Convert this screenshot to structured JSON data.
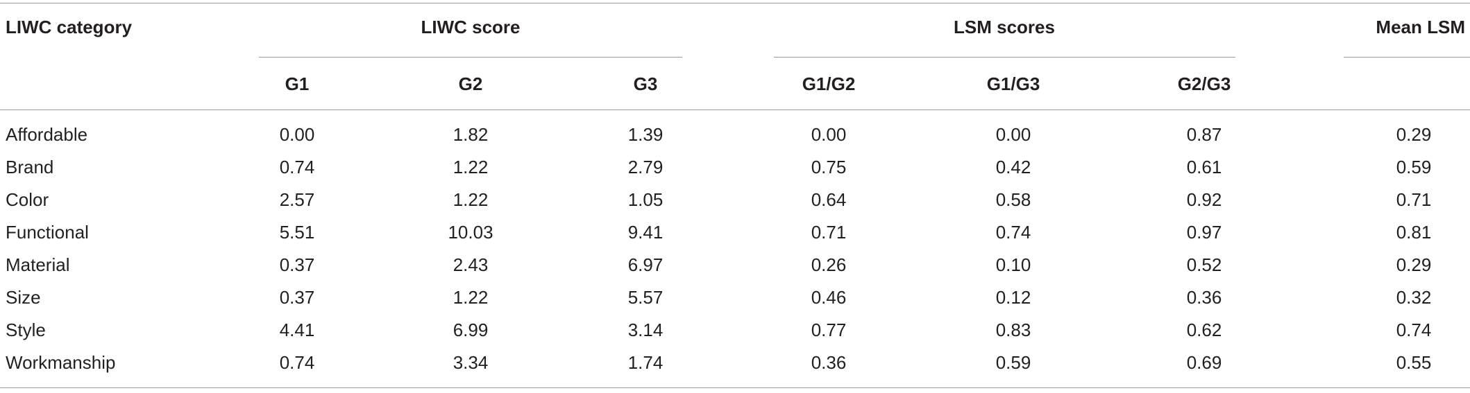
{
  "table": {
    "headers": {
      "category": "LIWC category",
      "liwc_score": "LIWC score",
      "lsm_scores": "LSM scores",
      "mean_lsm": "Mean LSM"
    },
    "subheaders": [
      "G1",
      "G2",
      "G3",
      "G1/G2",
      "G1/G3",
      "G2/G3"
    ],
    "rows": [
      {
        "category": "Affordable",
        "cells": [
          "0.00",
          "1.82",
          "1.39",
          "0.00",
          "0.00",
          "0.87",
          "0.29"
        ]
      },
      {
        "category": "Brand",
        "cells": [
          "0.74",
          "1.22",
          "2.79",
          "0.75",
          "0.42",
          "0.61",
          "0.59"
        ]
      },
      {
        "category": "Color",
        "cells": [
          "2.57",
          "1.22",
          "1.05",
          "0.64",
          "0.58",
          "0.92",
          "0.71"
        ]
      },
      {
        "category": "Functional",
        "cells": [
          "5.51",
          "10.03",
          "9.41",
          "0.71",
          "0.74",
          "0.97",
          "0.81"
        ]
      },
      {
        "category": "Material",
        "cells": [
          "0.37",
          "2.43",
          "6.97",
          "0.26",
          "0.10",
          "0.52",
          "0.29"
        ]
      },
      {
        "category": "Size",
        "cells": [
          "0.37",
          "1.22",
          "5.57",
          "0.46",
          "0.12",
          "0.36",
          "0.32"
        ]
      },
      {
        "category": "Style",
        "cells": [
          "4.41",
          "6.99",
          "3.14",
          "0.77",
          "0.83",
          "0.62",
          "0.74"
        ]
      },
      {
        "category": "Workmanship",
        "cells": [
          "0.74",
          "3.34",
          "1.74",
          "0.36",
          "0.59",
          "0.69",
          "0.55"
        ]
      }
    ]
  }
}
